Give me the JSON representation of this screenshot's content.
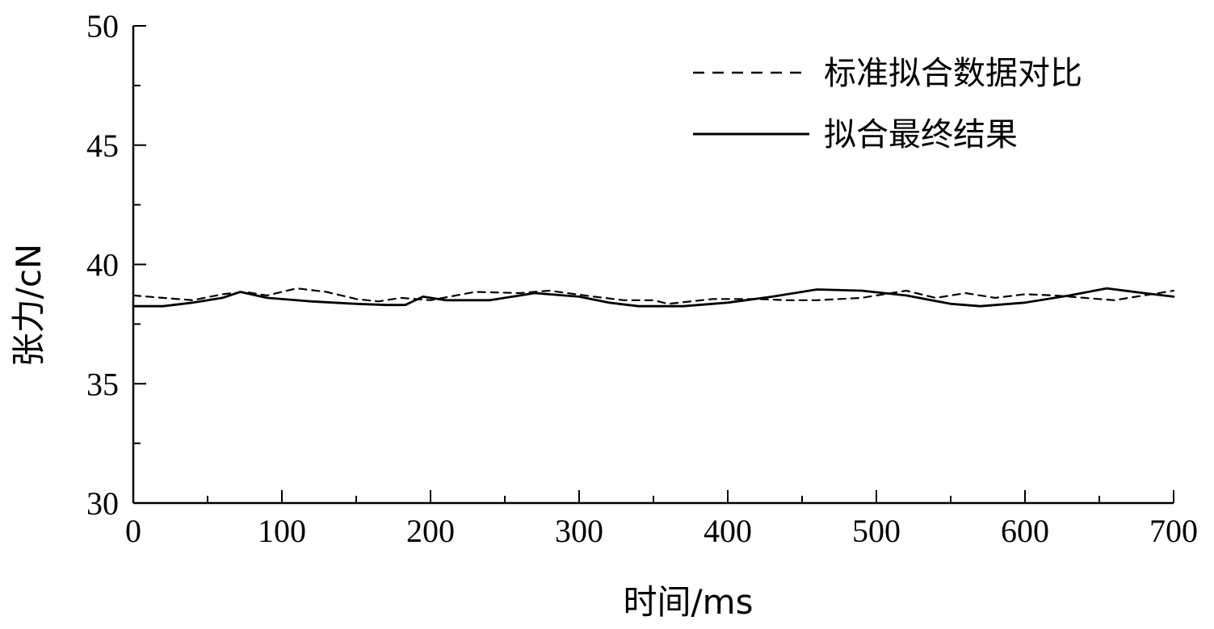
{
  "chart_data": {
    "type": "line",
    "title": "",
    "xlabel": "时间/ms",
    "ylabel": "张力/cN",
    "xlim": [
      0,
      700
    ],
    "ylim": [
      30,
      50
    ],
    "x_ticks": [
      "0",
      "100",
      "200",
      "300",
      "400",
      "500",
      "600",
      "700"
    ],
    "y_ticks": [
      "30",
      "35",
      "40",
      "45",
      "50"
    ],
    "grid": false,
    "legend_position": "top-right",
    "series": [
      {
        "name": "标准拟合数据对比",
        "style": "dashed",
        "color": "#000000",
        "points": [
          [
            0,
            38.7
          ],
          [
            20,
            38.6
          ],
          [
            40,
            38.5
          ],
          [
            60,
            38.75
          ],
          [
            75,
            38.85
          ],
          [
            90,
            38.7
          ],
          [
            110,
            39.0
          ],
          [
            130,
            38.85
          ],
          [
            150,
            38.55
          ],
          [
            165,
            38.45
          ],
          [
            180,
            38.6
          ],
          [
            200,
            38.5
          ],
          [
            230,
            38.85
          ],
          [
            260,
            38.8
          ],
          [
            280,
            38.9
          ],
          [
            310,
            38.65
          ],
          [
            330,
            38.5
          ],
          [
            350,
            38.5
          ],
          [
            360,
            38.35
          ],
          [
            390,
            38.55
          ],
          [
            420,
            38.55
          ],
          [
            440,
            38.5
          ],
          [
            460,
            38.5
          ],
          [
            490,
            38.6
          ],
          [
            520,
            38.9
          ],
          [
            540,
            38.6
          ],
          [
            560,
            38.8
          ],
          [
            580,
            38.6
          ],
          [
            600,
            38.75
          ],
          [
            620,
            38.7
          ],
          [
            640,
            38.6
          ],
          [
            660,
            38.5
          ],
          [
            680,
            38.7
          ],
          [
            700,
            38.9
          ]
        ]
      },
      {
        "name": "拟合最终结果",
        "style": "solid",
        "color": "#000000",
        "points": [
          [
            0,
            38.25
          ],
          [
            20,
            38.25
          ],
          [
            40,
            38.4
          ],
          [
            60,
            38.6
          ],
          [
            72,
            38.85
          ],
          [
            90,
            38.6
          ],
          [
            120,
            38.45
          ],
          [
            150,
            38.35
          ],
          [
            170,
            38.3
          ],
          [
            183,
            38.3
          ],
          [
            195,
            38.65
          ],
          [
            210,
            38.5
          ],
          [
            240,
            38.5
          ],
          [
            270,
            38.8
          ],
          [
            300,
            38.65
          ],
          [
            320,
            38.4
          ],
          [
            340,
            38.25
          ],
          [
            370,
            38.25
          ],
          [
            400,
            38.4
          ],
          [
            430,
            38.65
          ],
          [
            460,
            38.95
          ],
          [
            490,
            38.9
          ],
          [
            520,
            38.7
          ],
          [
            550,
            38.35
          ],
          [
            570,
            38.25
          ],
          [
            600,
            38.4
          ],
          [
            630,
            38.7
          ],
          [
            655,
            39.0
          ],
          [
            680,
            38.8
          ],
          [
            700,
            38.65
          ]
        ]
      }
    ]
  }
}
